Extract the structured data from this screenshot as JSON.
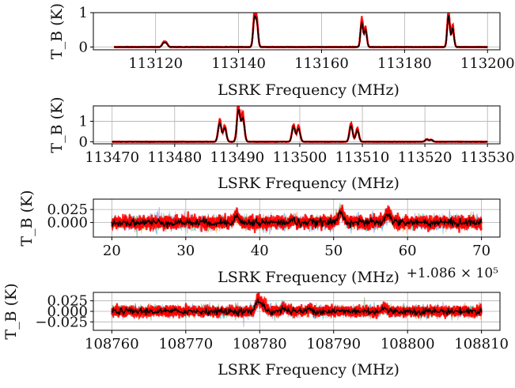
{
  "chart_data": [
    {
      "type": "line",
      "xlabel": "LSRK Frequency (MHz)",
      "ylabel": "T_B (K)",
      "xlim": [
        113105,
        113203
      ],
      "ylim": [
        -0.08,
        1.0
      ],
      "xticks": [
        113120,
        113140,
        113160,
        113180,
        113200
      ],
      "xtick_labels": [
        "113120",
        "113140",
        "113160",
        "113180",
        "113200"
      ],
      "yticks": [
        0,
        1
      ],
      "ytick_labels": [
        "0",
        "1"
      ],
      "x_range": [
        113110,
        113200
      ],
      "noise": 0.004,
      "lines": [
        {
          "center": 113121.9,
          "width": 0.35,
          "amp": 0.12
        },
        {
          "center": 113122.6,
          "width": 0.35,
          "amp": 0.11
        },
        {
          "center": 113143.8,
          "width": 0.3,
          "amp": 0.85
        },
        {
          "center": 113144.4,
          "width": 0.3,
          "amp": 0.72
        },
        {
          "center": 113169.7,
          "width": 0.3,
          "amp": 0.78
        },
        {
          "center": 113170.6,
          "width": 0.3,
          "amp": 0.55
        },
        {
          "center": 113190.6,
          "width": 0.3,
          "amp": 1.0
        },
        {
          "center": 113191.6,
          "width": 0.3,
          "amp": 0.6
        }
      ],
      "grid": true
    },
    {
      "type": "line",
      "xlabel": "LSRK Frequency (MHz)",
      "ylabel": "T_B (K)",
      "xlim": [
        113467,
        113532
      ],
      "ylim": [
        -0.1,
        1.75
      ],
      "xticks": [
        113470,
        113480,
        113490,
        113500,
        113510,
        113520,
        113530
      ],
      "xtick_labels": [
        "113470",
        "113480",
        "113490",
        "113500",
        "113510",
        "113520",
        "113530"
      ],
      "yticks": [
        0,
        1
      ],
      "ytick_labels": [
        "0",
        "1"
      ],
      "x_range": [
        113470,
        113530
      ],
      "noise": 0.006,
      "lines": [
        {
          "center": 113487.2,
          "width": 0.25,
          "amp": 1.0
        },
        {
          "center": 113488.0,
          "width": 0.25,
          "amp": 0.75
        },
        {
          "center": 113490.2,
          "width": 0.25,
          "amp": 1.7
        },
        {
          "center": 113490.9,
          "width": 0.25,
          "amp": 1.25
        },
        {
          "center": 113499.0,
          "width": 0.25,
          "amp": 0.8
        },
        {
          "center": 113499.8,
          "width": 0.25,
          "amp": 0.7
        },
        {
          "center": 113508.2,
          "width": 0.25,
          "amp": 0.85
        },
        {
          "center": 113509.2,
          "width": 0.25,
          "amp": 0.6
        },
        {
          "center": 113520.3,
          "width": 0.25,
          "amp": 0.12
        },
        {
          "center": 113521.0,
          "width": 0.25,
          "amp": 0.1
        }
      ],
      "grid": true
    },
    {
      "type": "line",
      "xlabel": "LSRK Frequency (MHz)",
      "ylabel": "T_B (K)",
      "xlim": [
        17.5,
        72.5
      ],
      "ylim": [
        -0.028,
        0.045
      ],
      "xticks": [
        20,
        30,
        40,
        50,
        60,
        70
      ],
      "xtick_labels": [
        "20",
        "30",
        "40",
        "50",
        "60",
        "70"
      ],
      "yticks": [
        0.0,
        0.025
      ],
      "ytick_labels": [
        "0.000",
        "0.025"
      ],
      "offset_text": "+1.086 × 10⁵",
      "x_range": [
        20,
        70
      ],
      "noise": 0.006,
      "lines": [
        {
          "center": 36.8,
          "width": 0.35,
          "amp": 0.012
        },
        {
          "center": 44.5,
          "width": 0.3,
          "amp": 0.006
        },
        {
          "center": 51.0,
          "width": 0.35,
          "amp": 0.022
        },
        {
          "center": 57.4,
          "width": 0.35,
          "amp": 0.018
        }
      ],
      "grid": true
    },
    {
      "type": "line",
      "xlabel": "LSRK Frequency (MHz)",
      "ylabel": "T_B (K)",
      "xlim": [
        108757.5,
        108812.5
      ],
      "ylim": [
        -0.045,
        0.045
      ],
      "xticks": [
        108760,
        108770,
        108780,
        108790,
        108800,
        108810
      ],
      "xtick_labels": [
        "108760",
        "108770",
        "108780",
        "108790",
        "108800",
        "108810"
      ],
      "yticks": [
        -0.025,
        0.0,
        0.025
      ],
      "ytick_labels": [
        "−0.025",
        "0.000",
        "0.025"
      ],
      "x_range": [
        108760,
        108810
      ],
      "noise": 0.006,
      "lines": [
        {
          "center": 108779.8,
          "width": 0.3,
          "amp": 0.028
        },
        {
          "center": 108780.5,
          "width": 0.3,
          "amp": 0.014
        },
        {
          "center": 108783.3,
          "width": 0.3,
          "amp": 0.008
        },
        {
          "center": 108786.8,
          "width": 0.3,
          "amp": 0.007
        },
        {
          "center": 108796.8,
          "width": 0.3,
          "amp": 0.008
        }
      ],
      "grid": true
    }
  ],
  "colors": {
    "posterior": "#ff0000",
    "mean": "#000000",
    "samples": [
      "#1f77b4",
      "#2ca02c",
      "#ff7f0e",
      "#9467bd",
      "#17becf"
    ]
  }
}
